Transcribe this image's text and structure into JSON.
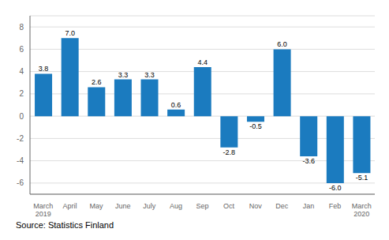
{
  "chart_data": {
    "type": "bar",
    "categories": [
      "March\n2019",
      "April",
      "May",
      "June",
      "July",
      "Aug",
      "Sep",
      "Oct",
      "Nov",
      "Dec",
      "Jan",
      "Feb",
      "March\n2020"
    ],
    "values": [
      3.8,
      7.0,
      2.6,
      3.3,
      3.3,
      0.6,
      4.4,
      -2.8,
      -0.5,
      6.0,
      -3.6,
      -6.0,
      -5.1
    ],
    "value_labels": [
      "3.8",
      "7.0",
      "2.6",
      "3.3",
      "3.3",
      "0.6",
      "4.4",
      "-2.8",
      "-0.5",
      "6.0",
      "-3.6",
      "-6.0",
      "-5.1"
    ],
    "data_labels": true,
    "color": "#1b7bbf",
    "ylim": [
      -7,
      9
    ],
    "yticks": [
      -6,
      -4,
      -2,
      0,
      2,
      4,
      6,
      8
    ],
    "grid": true,
    "annotations": [
      "Source: Statistics Finland"
    ]
  }
}
